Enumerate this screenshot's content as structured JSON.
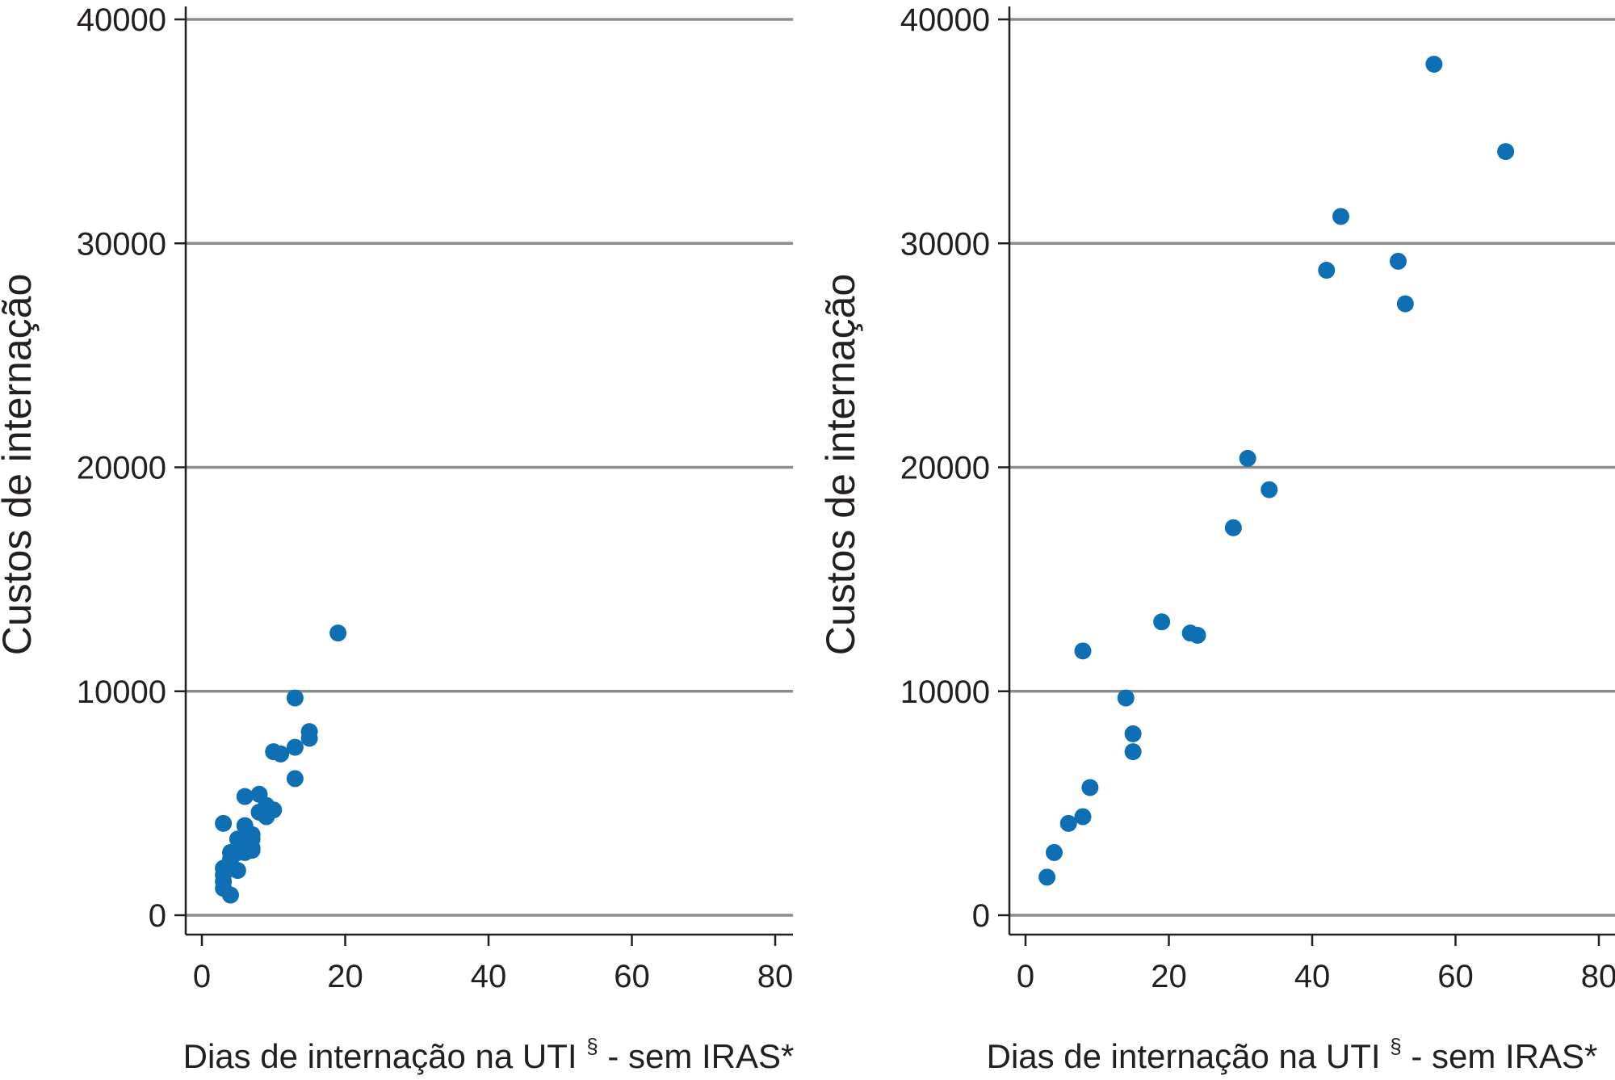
{
  "chart_data": [
    {
      "type": "scatter",
      "xlabel": "Dias de internação na UTI",
      "xlabel_sup": "§",
      "xlabel_suffix": " - sem IRAS*",
      "ylabel": "Custos de internação",
      "xlim": [
        -3,
        83
      ],
      "ylim": [
        -900,
        40500
      ],
      "xticks": [
        "0",
        "20",
        "40",
        "60",
        "80"
      ],
      "yticks": [
        "0",
        "10000",
        "20000",
        "30000",
        "40000"
      ],
      "grid": "horizontal",
      "marker_color": "#0f6fb4",
      "x": [
        3,
        3,
        3,
        3,
        3,
        4,
        4,
        4,
        5,
        5,
        5,
        6,
        6,
        6,
        6,
        7,
        7,
        7,
        7,
        8,
        8,
        9,
        9,
        10,
        10,
        11,
        13,
        13,
        13,
        15,
        15,
        19
      ],
      "y": [
        4100,
        2100,
        1800,
        1500,
        1200,
        900,
        2500,
        2800,
        2000,
        3400,
        2800,
        5300,
        4000,
        3000,
        2800,
        3600,
        3400,
        3000,
        2900,
        5400,
        4600,
        4900,
        4400,
        7300,
        4700,
        7200,
        9700,
        7500,
        6100,
        8200,
        7900,
        12600
      ]
    },
    {
      "type": "scatter",
      "xlabel": "Dias de internação na UTI",
      "xlabel_sup": "§",
      "xlabel_suffix": " - sem IRAS*",
      "ylabel": "Custos de internação",
      "xlim": [
        -3,
        83
      ],
      "ylim": [
        -900,
        40500
      ],
      "xticks": [
        "0",
        "20",
        "40",
        "60",
        "80"
      ],
      "yticks": [
        "0",
        "10000",
        "20000",
        "30000",
        "40000"
      ],
      "grid": "horizontal",
      "marker_color": "#0f6fb4",
      "x": [
        3,
        4,
        6,
        8,
        8,
        9,
        14,
        15,
        15,
        19,
        23,
        24,
        29,
        31,
        34,
        42,
        44,
        52,
        53,
        57,
        67
      ],
      "y": [
        1700,
        2800,
        4100,
        4400,
        11800,
        5700,
        9700,
        8100,
        7300,
        13100,
        12600,
        12500,
        17300,
        20400,
        19000,
        28800,
        31200,
        29200,
        27300,
        38000,
        34100
      ]
    }
  ]
}
